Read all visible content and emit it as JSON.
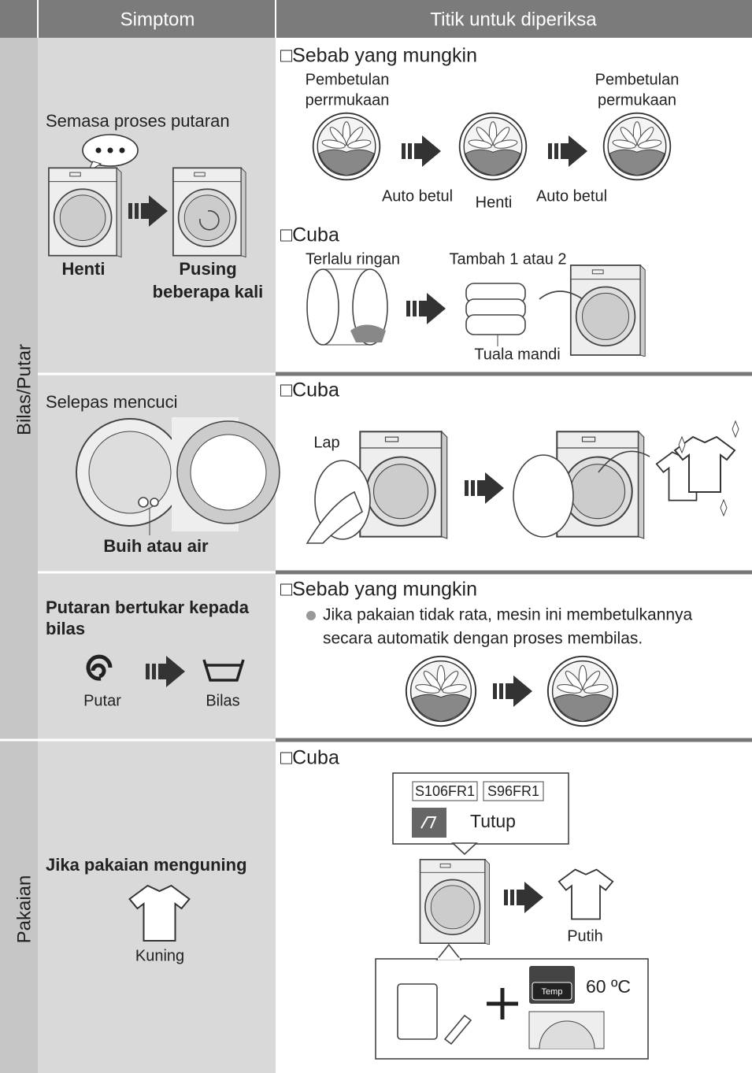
{
  "header": {
    "symptom": "Simptom",
    "check": "Titik untuk diperiksa"
  },
  "sections": [
    "Bilas/Putar",
    "Pakaian"
  ],
  "rows": [
    {
      "symptom": {
        "title": "Semasa proses putaran",
        "left": "Henti",
        "right": [
          "Pusing",
          "beberapa kali"
        ]
      },
      "cause": {
        "heading": "□Sebab yang mungkin",
        "left": [
          "Pembetulan",
          "perrmukaan"
        ],
        "right": [
          "Pembetulan",
          "permukaan"
        ],
        "steps": [
          "Auto betul",
          "Henti",
          "Auto betul"
        ]
      },
      "try": {
        "heading": "□Cuba",
        "light": "Terlalu ringan",
        "add": "Tambah 1 atau 2",
        "towel": "Tuala mandi"
      }
    },
    {
      "symptom": {
        "title": "Selepas mencuci",
        "caption": "Buih atau air"
      },
      "try": {
        "heading": "□Cuba",
        "wipe": "Lap"
      }
    },
    {
      "symptom": {
        "title": [
          "Putaran bertukar kepada",
          "bilas"
        ],
        "spin": "Putar",
        "rinse": "Bilas"
      },
      "cause": {
        "heading": "□Sebab yang mungkin",
        "text": [
          "Jika pakaian tidak rata, mesin ini membetulkannya",
          "secara automatik dengan proses membilas."
        ]
      }
    },
    {
      "symptom": {
        "title": "Jika pakaian menguning",
        "caption": "Kuning"
      },
      "try": {
        "heading": "□Cuba",
        "models": [
          "S106FR1",
          "S96FR1"
        ],
        "off": "Tutup",
        "white": "Putih",
        "temp_button": "Temp",
        "temp": "60 ºC"
      }
    }
  ]
}
